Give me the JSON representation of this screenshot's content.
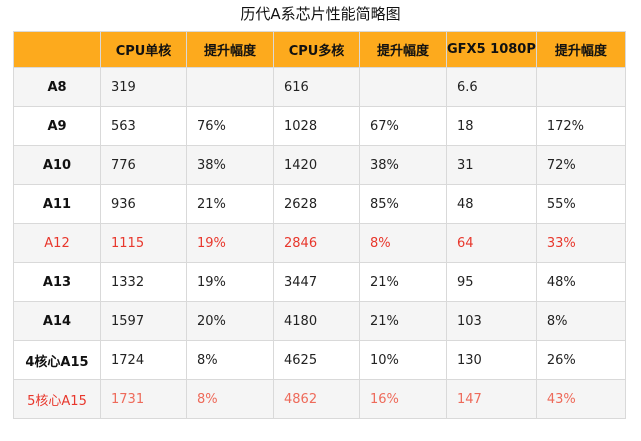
{
  "title": "历代A系芯片性能简略图",
  "accent_header_color": "#fdaa1d",
  "highlight_color": "#e8372c",
  "headers": [
    "",
    "CPU单核",
    "提升幅度",
    "CPU多核",
    "提升幅度",
    "GFX5 1080P",
    "提升幅度"
  ],
  "rows": [
    {
      "chip": "A8",
      "cells": [
        "319",
        "",
        "616",
        "",
        "6.6",
        ""
      ]
    },
    {
      "chip": "A9",
      "cells": [
        "563",
        "76%",
        "1028",
        "67%",
        "18",
        "172%"
      ]
    },
    {
      "chip": "A10",
      "cells": [
        "776",
        "38%",
        "1420",
        "38%",
        "31",
        "72%"
      ]
    },
    {
      "chip": "A11",
      "cells": [
        "936",
        "21%",
        "2628",
        "85%",
        "48",
        "55%"
      ]
    },
    {
      "chip": "A12",
      "cells": [
        "1115",
        "19%",
        "2846",
        "8%",
        "64",
        "33%"
      ]
    },
    {
      "chip": "A13",
      "cells": [
        "1332",
        "19%",
        "3447",
        "21%",
        "95",
        "48%"
      ]
    },
    {
      "chip": "A14",
      "cells": [
        "1597",
        "20%",
        "4180",
        "21%",
        "103",
        "8%"
      ]
    },
    {
      "chip": "4核心A15",
      "cells": [
        "1724",
        "8%",
        "4625",
        "10%",
        "130",
        "26%"
      ]
    },
    {
      "chip": "5核心A15",
      "cells": [
        "1731",
        "8%",
        "4862",
        "16%",
        "147",
        "43%"
      ]
    }
  ]
}
